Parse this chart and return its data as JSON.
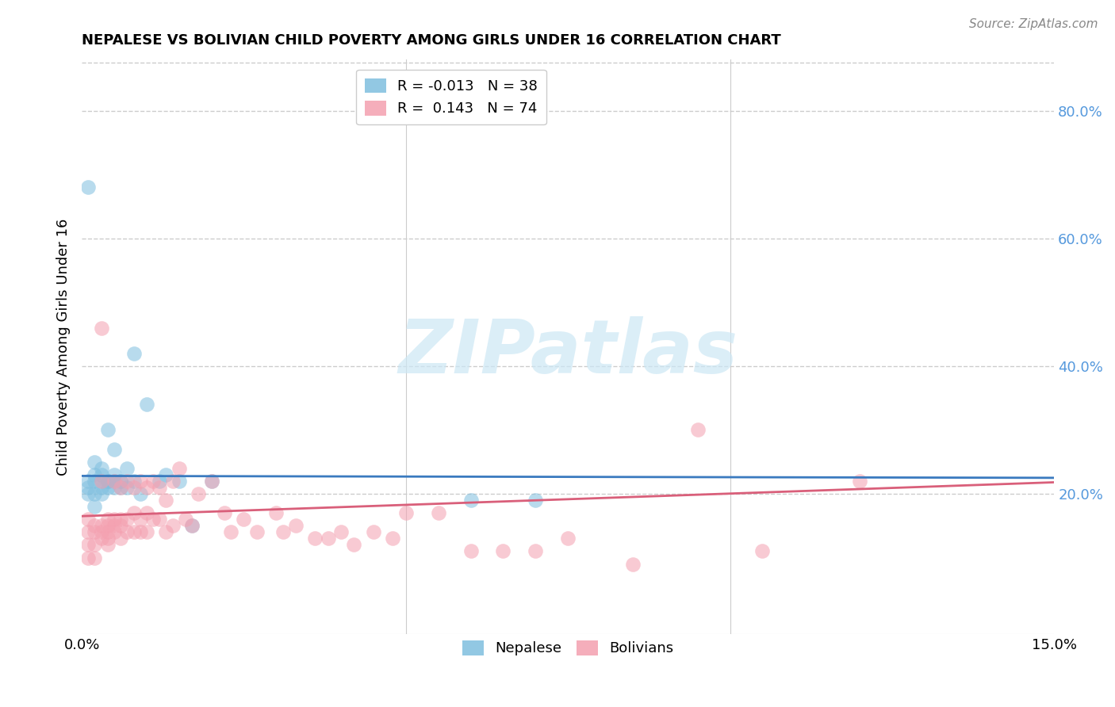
{
  "title": "NEPALESE VS BOLIVIAN CHILD POVERTY AMONG GIRLS UNDER 16 CORRELATION CHART",
  "source": "Source: ZipAtlas.com",
  "ylabel": "Child Poverty Among Girls Under 16",
  "xmin": 0.0,
  "xmax": 0.15,
  "ymin": -0.02,
  "ymax": 0.88,
  "nepalese_color": "#7fbfdf",
  "bolivian_color": "#f4a0b0",
  "nepalese_R": -0.013,
  "nepalese_N": 38,
  "bolivian_R": 0.143,
  "bolivian_N": 74,
  "nepalese_line_color": "#3a7abf",
  "bolivian_line_color": "#d95f7a",
  "grid_color": "#cccccc",
  "right_tick_color": "#5599dd",
  "watermark_color": "#cde8f5",
  "nepalese_data_x": [
    0.001,
    0.001,
    0.001,
    0.001,
    0.002,
    0.002,
    0.002,
    0.002,
    0.002,
    0.003,
    0.003,
    0.003,
    0.003,
    0.003,
    0.004,
    0.004,
    0.004,
    0.004,
    0.005,
    0.005,
    0.005,
    0.005,
    0.006,
    0.006,
    0.006,
    0.007,
    0.007,
    0.008,
    0.008,
    0.009,
    0.01,
    0.012,
    0.013,
    0.015,
    0.017,
    0.02,
    0.06,
    0.07
  ],
  "nepalese_data_y": [
    0.68,
    0.22,
    0.21,
    0.2,
    0.23,
    0.25,
    0.22,
    0.2,
    0.18,
    0.24,
    0.22,
    0.21,
    0.23,
    0.2,
    0.22,
    0.3,
    0.21,
    0.22,
    0.22,
    0.21,
    0.23,
    0.27,
    0.22,
    0.21,
    0.22,
    0.24,
    0.21,
    0.22,
    0.42,
    0.2,
    0.34,
    0.22,
    0.23,
    0.22,
    0.15,
    0.22,
    0.19,
    0.19
  ],
  "bolivian_data_x": [
    0.001,
    0.001,
    0.001,
    0.001,
    0.002,
    0.002,
    0.002,
    0.002,
    0.003,
    0.003,
    0.003,
    0.003,
    0.003,
    0.004,
    0.004,
    0.004,
    0.004,
    0.004,
    0.005,
    0.005,
    0.005,
    0.005,
    0.006,
    0.006,
    0.006,
    0.006,
    0.007,
    0.007,
    0.007,
    0.008,
    0.008,
    0.008,
    0.009,
    0.009,
    0.009,
    0.01,
    0.01,
    0.01,
    0.011,
    0.011,
    0.012,
    0.012,
    0.013,
    0.013,
    0.014,
    0.014,
    0.015,
    0.016,
    0.017,
    0.018,
    0.02,
    0.022,
    0.023,
    0.025,
    0.027,
    0.03,
    0.031,
    0.033,
    0.036,
    0.038,
    0.04,
    0.042,
    0.045,
    0.048,
    0.05,
    0.055,
    0.06,
    0.065,
    0.07,
    0.075,
    0.085,
    0.095,
    0.105,
    0.12
  ],
  "bolivian_data_y": [
    0.16,
    0.14,
    0.12,
    0.1,
    0.15,
    0.14,
    0.12,
    0.1,
    0.22,
    0.46,
    0.15,
    0.14,
    0.13,
    0.16,
    0.15,
    0.14,
    0.13,
    0.12,
    0.22,
    0.16,
    0.15,
    0.14,
    0.21,
    0.16,
    0.15,
    0.13,
    0.22,
    0.16,
    0.14,
    0.21,
    0.17,
    0.14,
    0.22,
    0.16,
    0.14,
    0.21,
    0.17,
    0.14,
    0.22,
    0.16,
    0.21,
    0.16,
    0.19,
    0.14,
    0.22,
    0.15,
    0.24,
    0.16,
    0.15,
    0.2,
    0.22,
    0.17,
    0.14,
    0.16,
    0.14,
    0.17,
    0.14,
    0.15,
    0.13,
    0.13,
    0.14,
    0.12,
    0.14,
    0.13,
    0.17,
    0.17,
    0.11,
    0.11,
    0.11,
    0.13,
    0.09,
    0.3,
    0.11,
    0.22
  ]
}
